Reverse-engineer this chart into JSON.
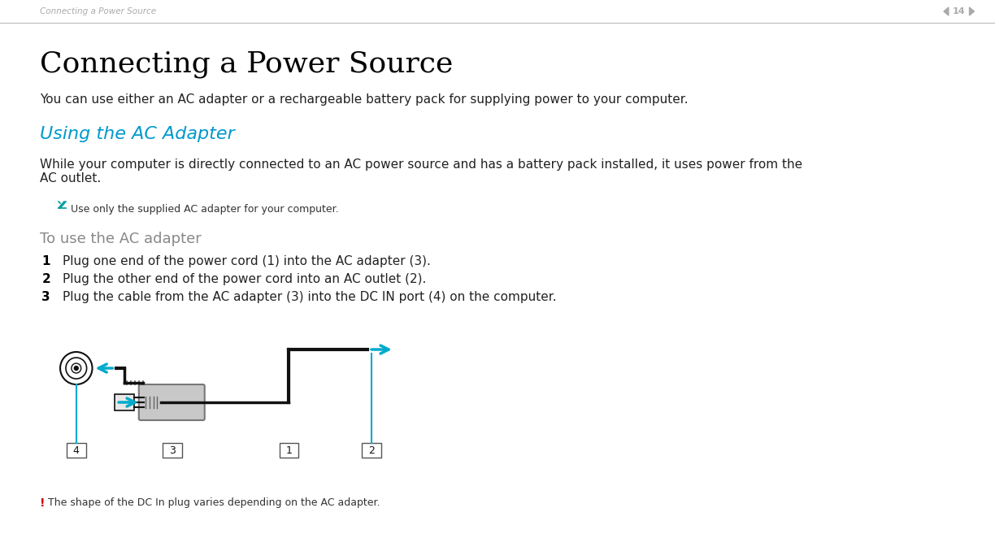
{
  "bg_color": "#ffffff",
  "header_text": "Connecting a Power Source",
  "header_page": "14",
  "header_color": "#aaaaaa",
  "title": "Connecting a Power Source",
  "title_fontsize": 26,
  "subtitle": "You can use either an AC adapter or a rechargeable battery pack for supplying power to your computer.",
  "subtitle_fontsize": 11,
  "section_heading": "Using the AC Adapter",
  "section_heading_color": "#0099cc",
  "section_heading_fontsize": 16,
  "body_text": "While your computer is directly connected to an AC power source and has a battery pack installed, it uses power from the\nAC outlet.",
  "body_fontsize": 11,
  "note_text": "Use only the supplied AC adapter for your computer.",
  "note_fontsize": 9,
  "procedure_heading": "To use the AC adapter",
  "procedure_heading_color": "#888888",
  "procedure_heading_fontsize": 13,
  "steps": [
    "Plug one end of the power cord (1) into the AC adapter (3).",
    "Plug the other end of the power cord into an AC outlet (2).",
    "Plug the cable from the AC adapter (3) into the DC IN port (4) on the computer."
  ],
  "step_fontsize": 11,
  "warning_text": "The shape of the DC In plug varies depending on the AC adapter.",
  "warning_fontsize": 9,
  "warning_color": "#cc0000",
  "arrow_color": "#00aacc",
  "diagram_color": "#888888",
  "line_color": "#000000"
}
